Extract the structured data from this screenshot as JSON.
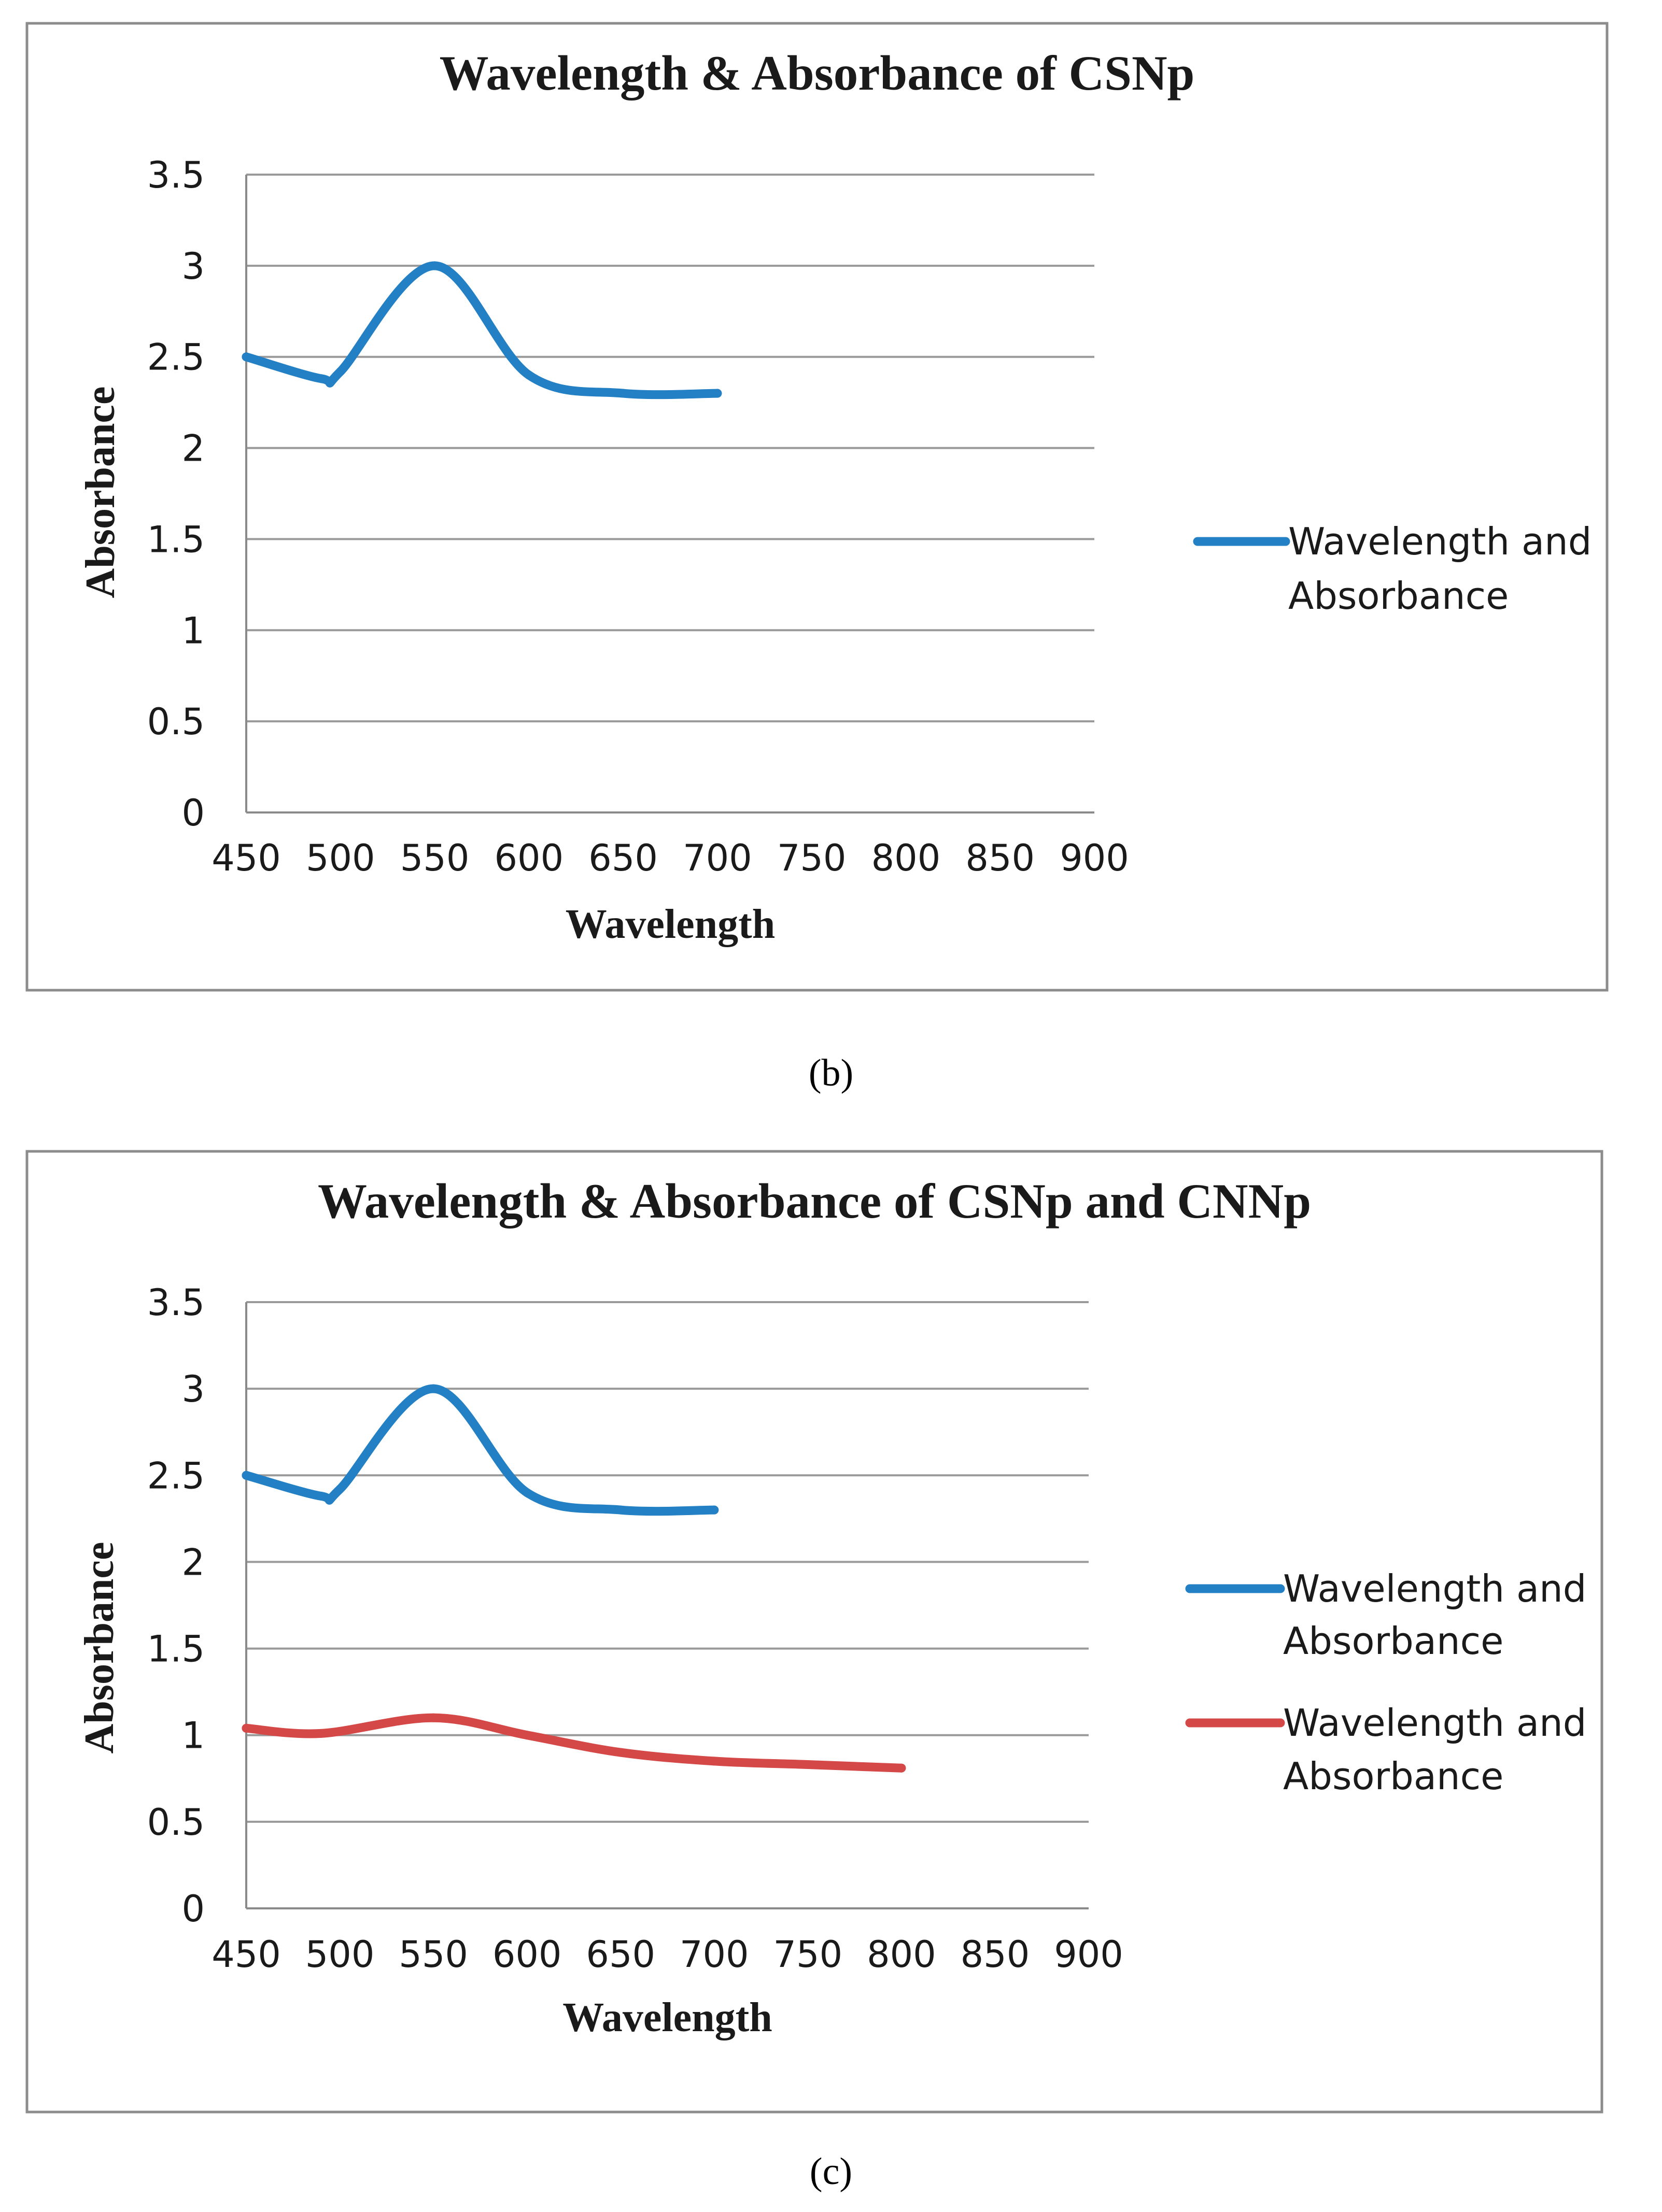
{
  "chart_data": [
    {
      "type": "line",
      "panel_label": "(b)",
      "title": "Wavelength & Absorbance of CSNp",
      "xlabel": "Wavelength",
      "ylabel": "Absorbance",
      "xlim": [
        450,
        900
      ],
      "ylim": [
        0,
        3.5
      ],
      "xticks": [
        "450",
        "500",
        "550",
        "600",
        "650",
        "700",
        "750",
        "800",
        "850",
        "900"
      ],
      "yticks": [
        "0",
        "0.5",
        "1",
        "1.5",
        "2",
        "2.5",
        "3",
        "3.5"
      ],
      "grid": "horizontal",
      "legend_position": "right",
      "series": [
        {
          "name": "Wavelength and Absorbance",
          "legend_lines": [
            "Wavelength and",
            "Absorbance"
          ],
          "color": "#2480c4",
          "x": [
            450,
            490,
            500,
            550,
            600,
            650,
            700
          ],
          "y": [
            2.5,
            2.38,
            2.42,
            3.0,
            2.4,
            2.3,
            2.3
          ]
        }
      ]
    },
    {
      "type": "line",
      "panel_label": "(c)",
      "title": "Wavelength & Absorbance of CSNp and CNNp",
      "xlabel": "Wavelength",
      "ylabel": "Absorbance",
      "xlim": [
        450,
        900
      ],
      "ylim": [
        0,
        3.5
      ],
      "xticks": [
        "450",
        "500",
        "550",
        "600",
        "650",
        "700",
        "750",
        "800",
        "850",
        "900"
      ],
      "yticks": [
        "0",
        "0.5",
        "1",
        "1.5",
        "2",
        "2.5",
        "3",
        "3.5"
      ],
      "grid": "horizontal",
      "legend_position": "right",
      "series": [
        {
          "name": "Wavelength and Absorbance",
          "legend_lines": [
            "Wavelength and",
            "Absorbance"
          ],
          "color": "#2480c4",
          "x": [
            450,
            490,
            500,
            550,
            600,
            650,
            700
          ],
          "y": [
            2.5,
            2.38,
            2.42,
            3.0,
            2.4,
            2.3,
            2.3
          ]
        },
        {
          "name": "Wavelength and Absorbance",
          "legend_lines": [
            "Wavelength and",
            "Absorbance"
          ],
          "color": "#d54848",
          "x": [
            450,
            490,
            550,
            600,
            650,
            700,
            750,
            800
          ],
          "y": [
            1.04,
            1.01,
            1.1,
            1.0,
            0.9,
            0.85,
            0.83,
            0.81
          ]
        }
      ]
    }
  ]
}
